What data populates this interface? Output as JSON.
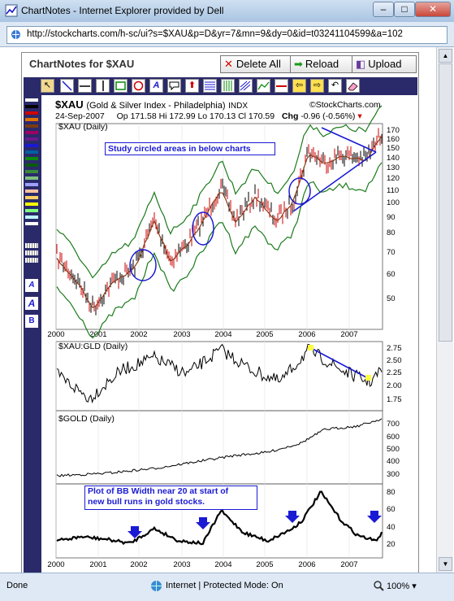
{
  "window": {
    "title": "ChartNotes - Internet Explorer provided by Dell",
    "url": "http://stockcharts.com/h-sc/ui?s=$XAU&p=D&yr=7&mn=9&dy=0&id=t03241104599&a=102",
    "minimize": "–",
    "maximize": "□",
    "close": "✕"
  },
  "chartnotes": {
    "title": "ChartNotes for $XAU",
    "delete_all": "Delete All",
    "reload": "Reload",
    "upload": "Upload"
  },
  "status": {
    "left": "Done",
    "zone": "Internet | Protected Mode: On",
    "zoom": "100%"
  },
  "chart": {
    "symbol": "$XAU",
    "name": "(Gold & Silver Index - Philadelphia)",
    "exchange": "INDX",
    "date": "24-Sep-2007",
    "ohlc": "Op 171.58  Hi 172.99  Lo 170.13  Cl 170.59",
    "chg_label": "Chg",
    "chg_value": "-0.96 (-0.56%)",
    "logo": "©StockCharts.com",
    "panel1_label": "$XAU (Daily)",
    "panel2_label": "$XAU:GLD (Daily)",
    "panel3_label": "$GOLD (Daily)",
    "note1": "Study circled areas in below charts",
    "note2_line1": "Plot of BB Width near 20 at start of",
    "note2_line2": "new bull runs in gold stocks.",
    "years": [
      "2000",
      "2001",
      "2002",
      "2003",
      "2004",
      "2005",
      "2006",
      "2007"
    ],
    "p1_ticks": [
      "170",
      "160",
      "150",
      "140",
      "130",
      "120",
      "110",
      "100",
      "90",
      "80",
      "70",
      "60",
      "50"
    ],
    "p2_ticks": [
      "2.75",
      "2.50",
      "2.25",
      "2.00",
      "1.75"
    ],
    "p3_ticks": [
      "700",
      "600",
      "500",
      "400",
      "300"
    ],
    "p4_ticks": [
      "80",
      "60",
      "40",
      "20"
    ]
  },
  "colors": {
    "toolbar_bg": "#2a2a6a",
    "price": "#000000",
    "bollinger": "#1a7a1a",
    "moving_avg": "#8b3a1a",
    "annotation": "#1a1ad4",
    "highlight": "#ffff40"
  },
  "palette_colors": [
    "#ffffff",
    "#000000",
    "#d00000",
    "#e07000",
    "#7a3a10",
    "#a00060",
    "#6a1a8a",
    "#1a1ad4",
    "#0060a0",
    "#0a8a0a",
    "#0a5a0a",
    "#3a8a3a",
    "#80c080",
    "#a0a0ff",
    "#ffc0a0",
    "#ffd060",
    "#ffff00",
    "#80ff80",
    "#c0ffff",
    "#ffffff"
  ],
  "tool_icons": [
    "pointer-icon",
    "line-icon",
    "hline-icon",
    "vline-icon",
    "rect-icon",
    "circle-icon",
    "text-icon",
    "callout-icon",
    "arrow-icon",
    "hlines-icon",
    "vlines-icon",
    "fib-icon",
    "trend-icon",
    "segment-icon",
    "move-left-icon",
    "move-right-icon",
    "undo-icon",
    "erase-icon"
  ]
}
